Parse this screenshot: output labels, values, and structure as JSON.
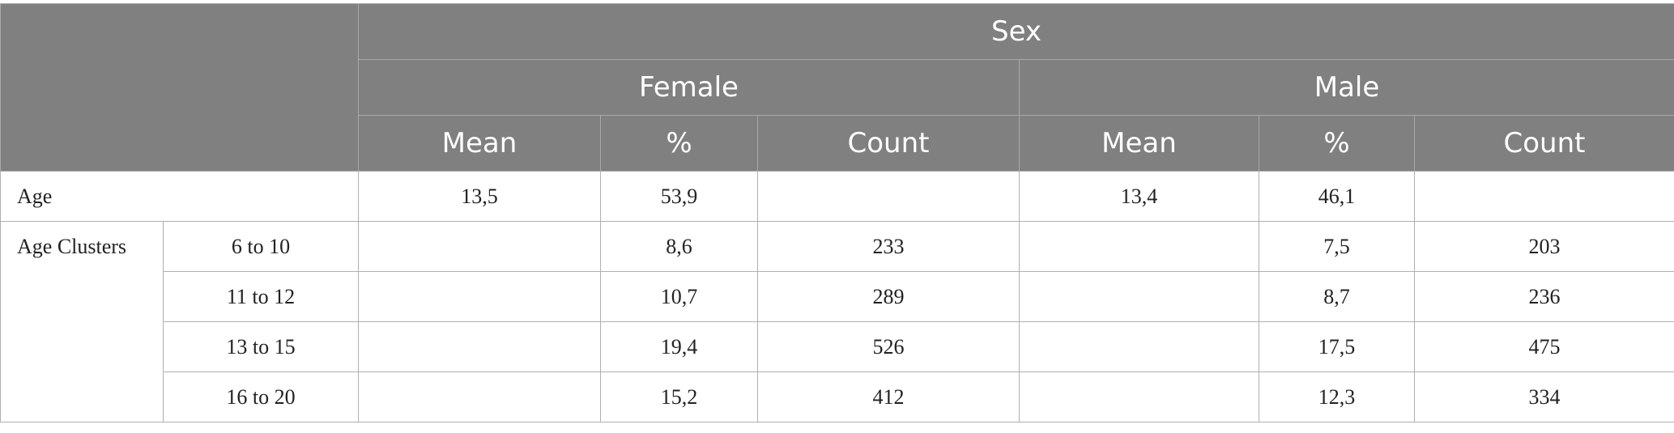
{
  "header": {
    "group": "Sex",
    "subgroups": [
      "Female",
      "Male"
    ],
    "measures": [
      "Mean",
      "%",
      "Count",
      "Mean",
      "%",
      "Count"
    ]
  },
  "age_row": {
    "label": "Age",
    "female": {
      "mean": "13,5",
      "percent": "53,9",
      "count": ""
    },
    "male": {
      "mean": "13,4",
      "percent": "46,1",
      "count": ""
    }
  },
  "clusters": {
    "label": "Age Clusters",
    "rows": [
      {
        "range": "6 to 10",
        "female": {
          "mean": "",
          "percent": "8,6",
          "count": "233"
        },
        "male": {
          "mean": "",
          "percent": "7,5",
          "count": "203"
        }
      },
      {
        "range": "11 to 12",
        "female": {
          "mean": "",
          "percent": "10,7",
          "count": "289"
        },
        "male": {
          "mean": "",
          "percent": "8,7",
          "count": "236"
        }
      },
      {
        "range": "13 to 15",
        "female": {
          "mean": "",
          "percent": "19,4",
          "count": "526"
        },
        "male": {
          "mean": "",
          "percent": "17,5",
          "count": "475"
        }
      },
      {
        "range": "16 to 20",
        "female": {
          "mean": "",
          "percent": "15,2",
          "count": "412"
        },
        "male": {
          "mean": "",
          "percent": "12,3",
          "count": "334"
        }
      }
    ]
  },
  "colors": {
    "header_bg": "#808080",
    "header_text": "#ffffff",
    "grid": "#b0b0b0"
  }
}
